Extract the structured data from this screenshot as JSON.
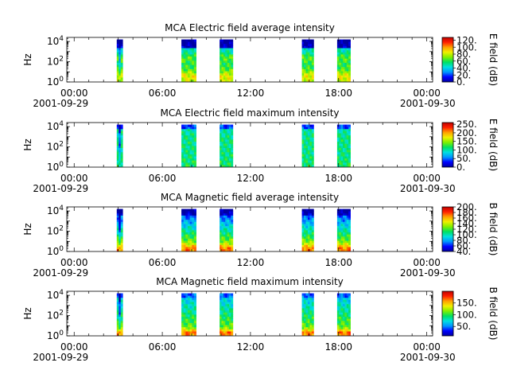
{
  "figure": {
    "background": "#ffffff",
    "colormap_stops": [
      "#0000a0",
      "#0000ff",
      "#0096ff",
      "#00e0e0",
      "#00e060",
      "#80f000",
      "#f0f000",
      "#ffa000",
      "#ff2000",
      "#c00000"
    ]
  },
  "chart_data": [
    {
      "type": "heatmap",
      "title": "MCA  Electric field average intensity",
      "ylabel": "Hz",
      "ylim_exponent": [
        0,
        4.4
      ],
      "yticks": [
        {
          "base": "10",
          "exp": "0"
        },
        {
          "base": "10",
          "exp": "2"
        },
        {
          "base": "10",
          "exp": "4"
        }
      ],
      "xlim_hours": [
        -0.5,
        24.4
      ],
      "xticks": [
        {
          "hour": 0,
          "time": "00:00",
          "date": "2001-09-29"
        },
        {
          "hour": 6,
          "time": "06:00",
          "date": ""
        },
        {
          "hour": 12,
          "time": "12:00",
          "date": ""
        },
        {
          "hour": 18,
          "time": "18:00",
          "date": ""
        },
        {
          "hour": 24,
          "time": "00:00",
          "date": "2001-09-30"
        }
      ],
      "colorbar": {
        "label": "E field (dB)",
        "range": [
          0,
          128
        ],
        "ticks": [
          "0.",
          "20.",
          "40.",
          "60.",
          "80.",
          "100.",
          "120."
        ]
      },
      "data_intervals_hours": [
        [
          2.9,
          3.3
        ],
        [
          7.3,
          8.3
        ],
        [
          9.9,
          10.8
        ],
        [
          15.5,
          16.3
        ],
        [
          17.9,
          18.8
        ]
      ],
      "intensity_profile": "average-e"
    },
    {
      "type": "heatmap",
      "title": "MCA  Electric field maximum intensity",
      "ylabel": "Hz",
      "ylim_exponent": [
        0,
        4.4
      ],
      "yticks": [
        {
          "base": "10",
          "exp": "0"
        },
        {
          "base": "10",
          "exp": "2"
        },
        {
          "base": "10",
          "exp": "4"
        }
      ],
      "xlim_hours": [
        -0.5,
        24.4
      ],
      "xticks": [
        {
          "hour": 0,
          "time": "00:00",
          "date": "2001-09-29"
        },
        {
          "hour": 6,
          "time": "06:00",
          "date": ""
        },
        {
          "hour": 12,
          "time": "12:00",
          "date": ""
        },
        {
          "hour": 18,
          "time": "18:00",
          "date": ""
        },
        {
          "hour": 24,
          "time": "00:00",
          "date": "2001-09-30"
        }
      ],
      "colorbar": {
        "label": "E field (dB)",
        "range": [
          0,
          260
        ],
        "ticks": [
          "0.",
          "50.",
          "100.",
          "150.",
          "200.",
          "250."
        ]
      },
      "data_intervals_hours": [
        [
          2.9,
          3.3
        ],
        [
          7.3,
          8.3
        ],
        [
          9.9,
          10.8
        ],
        [
          15.5,
          16.3
        ],
        [
          17.9,
          18.8
        ]
      ],
      "intensity_profile": "maximum-e"
    },
    {
      "type": "heatmap",
      "title": "MCA  Magnetic field average intensity",
      "ylabel": "Hz",
      "ylim_exponent": [
        0,
        4.4
      ],
      "yticks": [
        {
          "base": "10",
          "exp": "0"
        },
        {
          "base": "10",
          "exp": "2"
        },
        {
          "base": "10",
          "exp": "4"
        }
      ],
      "xlim_hours": [
        -0.5,
        24.4
      ],
      "xticks": [
        {
          "hour": 0,
          "time": "00:00",
          "date": "2001-09-29"
        },
        {
          "hour": 6,
          "time": "06:00",
          "date": ""
        },
        {
          "hour": 12,
          "time": "12:00",
          "date": ""
        },
        {
          "hour": 18,
          "time": "18:00",
          "date": ""
        },
        {
          "hour": 24,
          "time": "00:00",
          "date": "2001-09-30"
        }
      ],
      "colorbar": {
        "label": "B field (dB)",
        "range": [
          40,
          200
        ],
        "ticks": [
          "40.",
          "60.",
          "80.",
          "100.",
          "120.",
          "140.",
          "160.",
          "180.",
          "200."
        ]
      },
      "data_intervals_hours": [
        [
          2.9,
          3.3
        ],
        [
          7.3,
          8.3
        ],
        [
          9.9,
          10.8
        ],
        [
          15.5,
          16.3
        ],
        [
          17.9,
          18.8
        ]
      ],
      "intensity_profile": "average-b"
    },
    {
      "type": "heatmap",
      "title": "MCA  Magnetic field maximum intensity",
      "ylabel": "Hz",
      "ylim_exponent": [
        0,
        4.4
      ],
      "yticks": [
        {
          "base": "10",
          "exp": "0"
        },
        {
          "base": "10",
          "exp": "2"
        },
        {
          "base": "10",
          "exp": "4"
        }
      ],
      "xlim_hours": [
        -0.5,
        24.4
      ],
      "xticks": [
        {
          "hour": 0,
          "time": "00:00",
          "date": "2001-09-29"
        },
        {
          "hour": 6,
          "time": "06:00",
          "date": ""
        },
        {
          "hour": 12,
          "time": "12:00",
          "date": ""
        },
        {
          "hour": 18,
          "time": "18:00",
          "date": ""
        },
        {
          "hour": 24,
          "time": "00:00",
          "date": "2001-09-30"
        }
      ],
      "colorbar": {
        "label": "B field (dB)",
        "range": [
          10,
          200
        ],
        "ticks": [
          "50.",
          "100.",
          "150."
        ]
      },
      "data_intervals_hours": [
        [
          2.9,
          3.3
        ],
        [
          7.3,
          8.3
        ],
        [
          9.9,
          10.8
        ],
        [
          15.5,
          16.3
        ],
        [
          17.9,
          18.8
        ]
      ],
      "intensity_profile": "maximum-b"
    }
  ]
}
